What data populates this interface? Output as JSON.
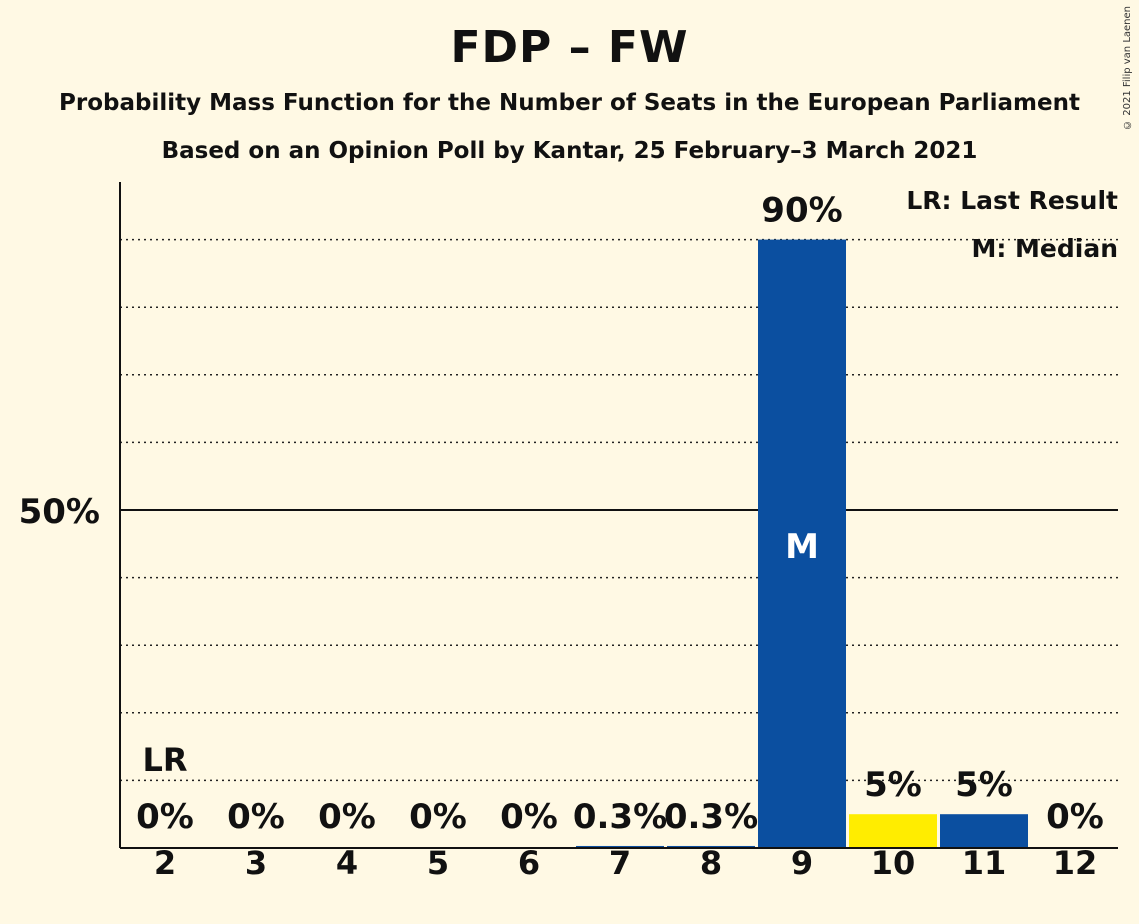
{
  "title": "FDP – FW",
  "subtitle": "Probability Mass Function for the Number of Seats in the European Parliament",
  "subtitle2": "Based on an Opinion Poll by Kantar, 25 February–3 March 2021",
  "copyright": "© 2021 Filip van Laenen",
  "legend": {
    "last_result": "LR: Last Result",
    "median": "M: Median"
  },
  "colors": {
    "background": "#fff9e4",
    "bar": "#0b4fa0",
    "highlight": "#ffed00",
    "axis": "#111111"
  },
  "chart_data": {
    "type": "bar",
    "categories": [
      "2",
      "3",
      "4",
      "5",
      "6",
      "7",
      "8",
      "9",
      "10",
      "11",
      "12"
    ],
    "values": [
      0,
      0,
      0,
      0,
      0,
      0.3,
      0.3,
      90,
      5,
      5,
      0
    ],
    "labels": [
      "0%",
      "0%",
      "0%",
      "0%",
      "0%",
      "0.3%",
      "0.3%",
      "90%",
      "5%",
      "5%",
      "0%"
    ],
    "bar_colors": [
      "#0b4fa0",
      "#0b4fa0",
      "#0b4fa0",
      "#0b4fa0",
      "#0b4fa0",
      "#0b4fa0",
      "#0b4fa0",
      "#0b4fa0",
      "#ffed00",
      "#0b4fa0",
      "#0b4fa0"
    ],
    "ylim": [
      0,
      100
    ],
    "gridlines": [
      10,
      20,
      30,
      40,
      60,
      70,
      80,
      90
    ],
    "major_line": 50,
    "ytick_label": "50%",
    "last_result": {
      "category": "2",
      "label": "LR"
    },
    "median": {
      "category": "9",
      "label": "M"
    },
    "legend_position": "top-right"
  }
}
